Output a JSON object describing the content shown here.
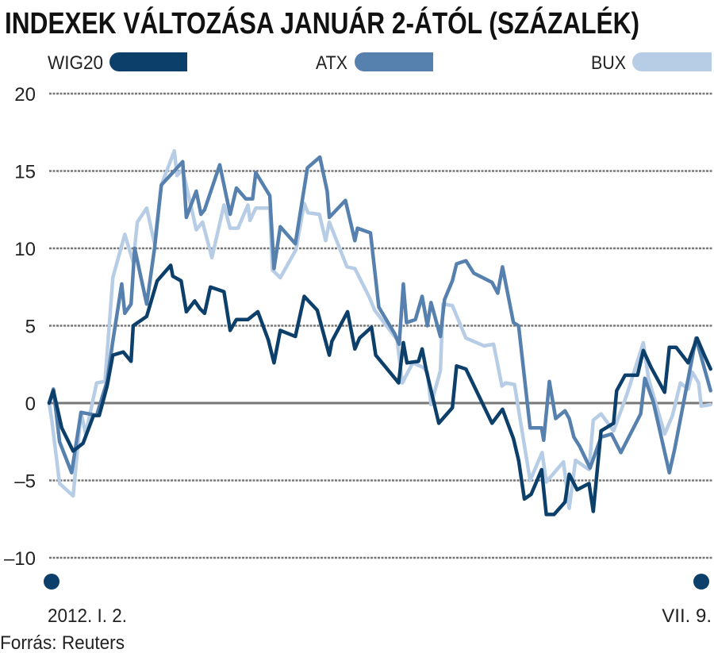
{
  "chart_data": {
    "type": "line",
    "title": "INDEXEK VÁLTOZÁSA JANUÁR 2-ÁTÓL (SZÁZALÉK)",
    "xlabel": "",
    "ylabel": "",
    "x_unit": "trading session index since 2012-01-02",
    "xlim": [
      0,
      127
    ],
    "ylim": [
      -10,
      20
    ],
    "yticks": [
      20,
      15,
      10,
      5,
      0,
      -5,
      -10
    ],
    "ytick_labels": [
      "20",
      "15",
      "10",
      "5",
      "0",
      "–5",
      "–10"
    ],
    "x_start_label": "2012. I. 2.",
    "x_end_label": "VII. 9.",
    "grid": true,
    "legend_position": "top",
    "source": "Forrás: Reuters",
    "series": [
      {
        "name": "WIG20",
        "color": "#0d3f6b",
        "x": [
          0,
          0.8,
          2.4,
          4.6,
          6.5,
          8.5,
          9.6,
          11.1,
          12.2,
          14.2,
          15.7,
          16.1,
          18.7,
          20.7,
          23.3,
          23.7,
          25.3,
          26.3,
          27.9,
          28.9,
          29.8,
          30.9,
          33.5,
          34.7,
          35.9,
          38.1,
          40.0,
          42.0,
          43.1,
          44.3,
          47.2,
          48.9,
          51.4,
          53.7,
          54.2,
          57.2,
          58.6,
          59.5,
          61.8,
          62.6,
          67.0,
          67.9,
          68.6,
          70.8,
          71.5,
          72.3,
          74.7,
          77.3,
          78.1,
          79.9,
          84.9,
          86.9,
          89.0,
          90.0,
          91.1,
          92.4,
          94.4,
          95.3,
          96.8,
          98.9,
          99.7,
          101.2,
          103.5,
          104.3,
          105.8,
          108.2,
          108.8,
          110.4,
          112.8,
          113.9,
          115.4,
          118.0,
          118.9,
          120.2,
          122.5,
          124.2,
          125.6,
          126.8
        ],
        "y": [
          0,
          0.8,
          -1.6,
          -3.1,
          -2.6,
          -0.8,
          -0.8,
          1.1,
          3.1,
          3.3,
          2.7,
          5.0,
          5.6,
          7.9,
          8.9,
          8.2,
          7.9,
          5.9,
          6.6,
          6.1,
          5.8,
          7.5,
          7.2,
          4.7,
          5.4,
          5.4,
          5.9,
          4.1,
          2.6,
          4.7,
          4.3,
          6.9,
          6.0,
          3.1,
          4.0,
          5.9,
          3.5,
          4.2,
          4.9,
          3.1,
          1.3,
          3.9,
          2.6,
          2.7,
          3.5,
          2.1,
          -1.3,
          -0.3,
          2.4,
          2.2,
          -1.3,
          -0.4,
          -2.3,
          -3.7,
          -6.2,
          -5.9,
          -4.3,
          -7.2,
          -7.2,
          -6.4,
          -4.6,
          -5.6,
          -5.2,
          -7.0,
          -1.8,
          -1.3,
          0.8,
          1.8,
          1.8,
          3.4,
          2.3,
          0.7,
          3.6,
          3.6,
          2.6,
          4.2,
          3.1,
          2.2
        ]
      },
      {
        "name": "ATX",
        "color": "#5680ad",
        "x": [
          0,
          0.8,
          2.0,
          4.3,
          6.1,
          9.1,
          11.1,
          12.2,
          13.9,
          14.5,
          15.7,
          16.4,
          18.7,
          20.2,
          21.5,
          23.7,
          25.6,
          26.3,
          28.2,
          29.1,
          29.8,
          32.7,
          34.7,
          35.9,
          37.7,
          39.0,
          39.6,
          42.3,
          43.1,
          44.3,
          47.2,
          49.5,
          51.9,
          53.3,
          53.7,
          56.8,
          58.6,
          59.1,
          61.6,
          63.2,
          66.2,
          67.1,
          67.9,
          68.5,
          70.2,
          71.5,
          72.5,
          73.2,
          75.0,
          75.8,
          77.3,
          78.1,
          79.9,
          81.4,
          84.9,
          86.0,
          86.9,
          89.0,
          90.0,
          92.2,
          94.4,
          94.8,
          95.9,
          97.1,
          98.9,
          99.7,
          100.6,
          101.7,
          103.7,
          105.8,
          107.8,
          109.6,
          113.4,
          114.2,
          115.8,
          118.9,
          119.9,
          124.0,
          126.8
        ],
        "y": [
          0,
          0.9,
          -2.5,
          -4.5,
          -0.6,
          -0.8,
          1.4,
          4.0,
          7.7,
          5.8,
          6.4,
          10.0,
          6.4,
          10.0,
          14.1,
          14.9,
          15.6,
          12.0,
          13.7,
          12.2,
          12.5,
          15.4,
          12.2,
          13.9,
          13.2,
          13.2,
          14.9,
          13.4,
          8.7,
          11.4,
          10.3,
          15.2,
          15.9,
          13.7,
          12.0,
          13.1,
          10.5,
          11.3,
          11.0,
          6.2,
          4.5,
          3.8,
          7.7,
          5.2,
          5.4,
          6.9,
          5.0,
          6.5,
          4.3,
          6.7,
          7.9,
          9.0,
          9.2,
          8.4,
          7.8,
          7.1,
          8.8,
          5.2,
          5.0,
          -1.6,
          -1.6,
          -2.4,
          1.4,
          -1.0,
          -0.5,
          -1.0,
          -2.2,
          -2.8,
          -4.2,
          -2.2,
          -2.0,
          -3.2,
          -0.7,
          1.6,
          0.1,
          -4.5,
          -3.0,
          4.2,
          0.8
        ]
      },
      {
        "name": "BUX",
        "color": "#b7cde6",
        "x": [
          0,
          0.5,
          2.0,
          4.6,
          6.1,
          7.0,
          9.1,
          10.7,
          12.2,
          14.5,
          16.1,
          16.9,
          18.7,
          20.2,
          21.5,
          24.0,
          24.5,
          25.6,
          28.2,
          29.4,
          31.2,
          33.5,
          34.7,
          36.2,
          38.1,
          38.5,
          39.6,
          42.3,
          42.8,
          44.3,
          47.3,
          48.9,
          49.6,
          51.8,
          53.0,
          53.7,
          57.1,
          58.6,
          61.3,
          62.4,
          66.7,
          67.7,
          69.7,
          71.7,
          72.5,
          73.2,
          75.0,
          75.5,
          77.3,
          79.9,
          83.4,
          85.2,
          86.8,
          87.5,
          89.2,
          92.2,
          94.5,
          95.3,
          98.6,
          99.7,
          100.9,
          103.5,
          104.3,
          105.8,
          108.2,
          110.8,
          113.9,
          114.9,
          118.0,
          119.5,
          121.0,
          122.5,
          123.3,
          124.5,
          125.0,
          126.8
        ],
        "y": [
          0,
          -1.1,
          -5.2,
          -6.0,
          -0.6,
          -2.0,
          1.3,
          1.4,
          8.1,
          10.9,
          9.1,
          11.7,
          12.6,
          10.3,
          14.1,
          16.3,
          14.7,
          15.1,
          11.2,
          11.7,
          9.4,
          12.8,
          11.3,
          11.3,
          12.8,
          11.8,
          12.6,
          12.6,
          8.6,
          8.1,
          9.9,
          12.9,
          12.3,
          12.2,
          10.5,
          11.7,
          8.8,
          8.7,
          6.9,
          6.0,
          4.1,
          1.3,
          2.6,
          2.3,
          2.0,
          -0.1,
          2.1,
          6.4,
          6.3,
          4.2,
          3.7,
          3.8,
          1.1,
          1.3,
          1.2,
          -5.0,
          -3.2,
          -5.1,
          -3.8,
          -6.8,
          -3.7,
          -4.3,
          -1.1,
          -0.7,
          -1.8,
          0.6,
          3.9,
          1.6,
          -2.0,
          -0.8,
          1.3,
          0.9,
          2.0,
          1.3,
          -0.2,
          -0.1
        ]
      }
    ]
  }
}
